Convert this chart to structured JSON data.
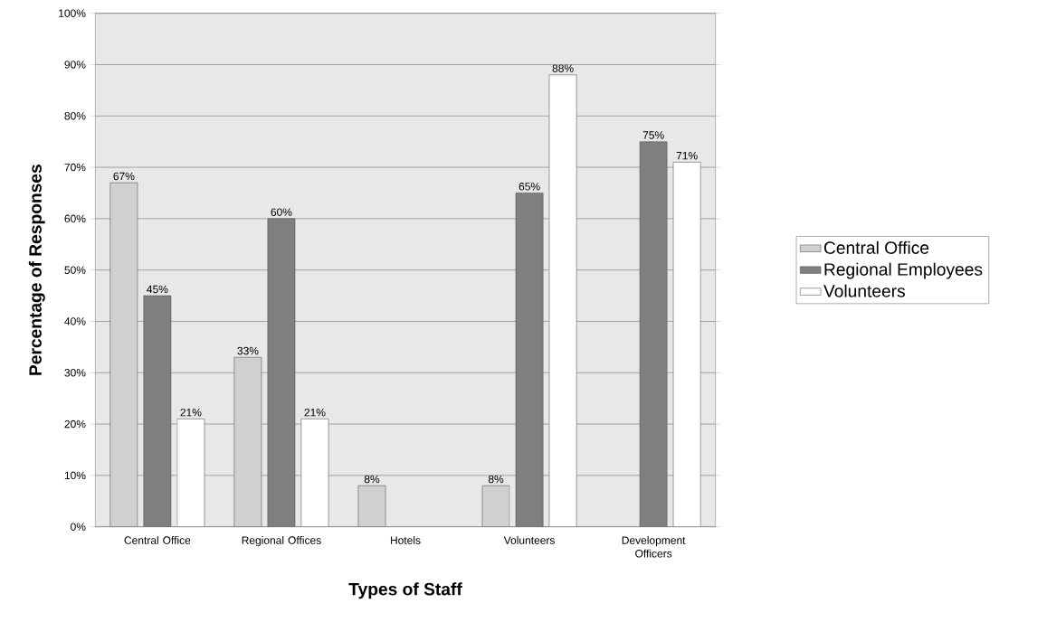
{
  "chart_data": {
    "type": "bar",
    "xlabel": "Types of Staff",
    "ylabel": "Percentage of Responses",
    "categories": [
      "Central Office",
      "Regional Offices",
      "Hotels",
      "Volunteers",
      "Development Officers"
    ],
    "series": [
      {
        "name": "Central Office",
        "color": "#d0d0d0",
        "values": [
          67,
          33,
          8,
          8,
          null
        ],
        "value_labels": [
          "67%",
          "33%",
          "8%",
          "8%",
          null
        ]
      },
      {
        "name": "Regional Employees",
        "color": "#7f7f7f",
        "values": [
          45,
          60,
          null,
          65,
          75
        ],
        "value_labels": [
          "45%",
          "60%",
          null,
          "65%",
          "75%"
        ]
      },
      {
        "name": "Volunteers",
        "color": "#ffffff",
        "values": [
          21,
          21,
          null,
          88,
          71
        ],
        "value_labels": [
          "21%",
          "21%",
          null,
          "88%",
          "71%"
        ]
      }
    ],
    "ylim": [
      0,
      100
    ],
    "yticks": [
      {
        "value": 0,
        "label": "0%"
      },
      {
        "value": 10,
        "label": "10%"
      },
      {
        "value": 20,
        "label": "20%"
      },
      {
        "value": 30,
        "label": "30%"
      },
      {
        "value": 40,
        "label": "40%"
      },
      {
        "value": 50,
        "label": "50%"
      },
      {
        "value": 60,
        "label": "60%"
      },
      {
        "value": 70,
        "label": "70%"
      },
      {
        "value": 80,
        "label": "80%"
      },
      {
        "value": 90,
        "label": "90%"
      },
      {
        "value": 100,
        "label": "100%"
      }
    ],
    "grid": "y",
    "legend": "right"
  }
}
